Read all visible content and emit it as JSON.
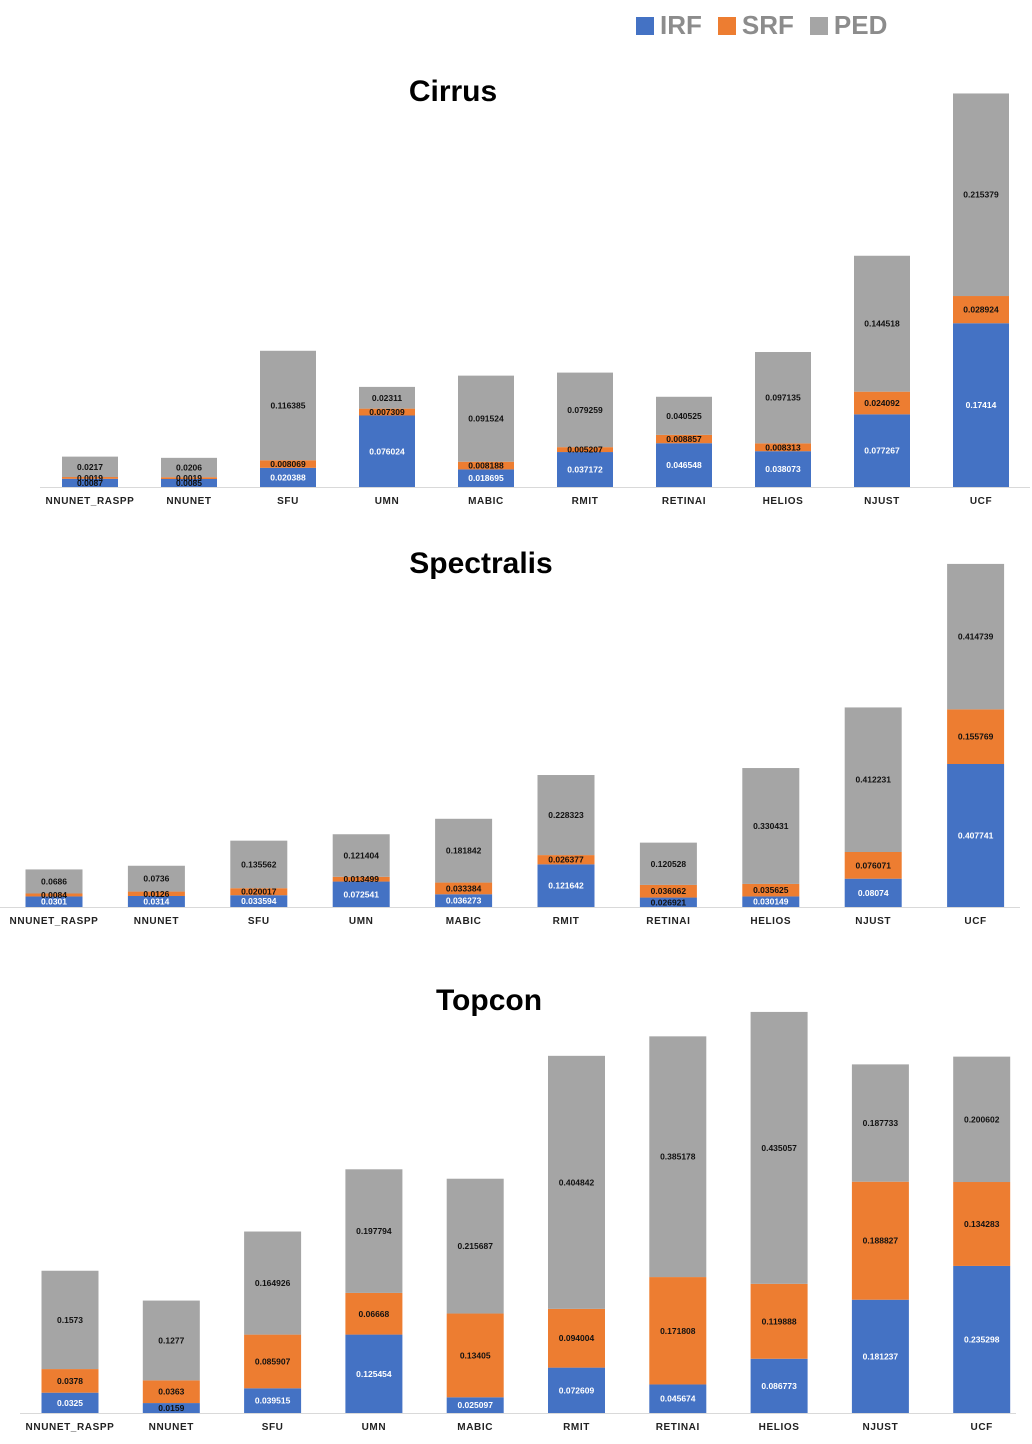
{
  "legend": [
    {
      "name": "IRF",
      "color": "#4472C4"
    },
    {
      "name": "SRF",
      "color": "#ED7D31"
    },
    {
      "name": "PED",
      "color": "#A5A5A5"
    }
  ],
  "chart_data": [
    {
      "type": "bar",
      "stacked": true,
      "title": "Cirrus",
      "categories": [
        "NNUNET_RASPP",
        "NNUNET",
        "SFU",
        "UMN",
        "MABIC",
        "RMIT",
        "RETINAI",
        "HELIOS",
        "NJUST",
        "UCF"
      ],
      "series": [
        {
          "name": "IRF",
          "values": [
            0.0087,
            0.0085,
            0.020388,
            0.076024,
            0.018695,
            0.037172,
            0.046548,
            0.038073,
            0.077267,
            0.17414
          ]
        },
        {
          "name": "SRF",
          "values": [
            0.0019,
            0.0019,
            0.008069,
            0.007309,
            0.008188,
            0.005207,
            0.008857,
            0.008313,
            0.024092,
            0.028924
          ]
        },
        {
          "name": "PED",
          "values": [
            0.0217,
            0.0206,
            0.116385,
            0.02311,
            0.091524,
            0.079259,
            0.040525,
            0.097135,
            0.144518,
            0.215379
          ]
        }
      ],
      "ylim": [
        0,
        0.42
      ],
      "xlabel": "",
      "ylabel": ""
    },
    {
      "type": "bar",
      "stacked": true,
      "title": "Spectralis",
      "categories": [
        "NNUNET_RASPP",
        "NNUNET",
        "SFU",
        "UMN",
        "MABIC",
        "RMIT",
        "RETINAI",
        "HELIOS",
        "NJUST",
        "UCF"
      ],
      "series": [
        {
          "name": "IRF",
          "values": [
            0.0301,
            0.0314,
            0.033594,
            0.072541,
            0.036273,
            0.121642,
            0.026921,
            0.030149,
            0.08074,
            0.407741
          ]
        },
        {
          "name": "SRF",
          "values": [
            0.0084,
            0.0126,
            0.020017,
            0.013499,
            0.033384,
            0.026377,
            0.036062,
            0.035625,
            0.076071,
            0.155769
          ]
        },
        {
          "name": "PED",
          "values": [
            0.0686,
            0.0736,
            0.135562,
            0.121404,
            0.181842,
            0.228323,
            0.120528,
            0.330431,
            0.412231,
            0.414739
          ]
        }
      ],
      "ylim": [
        0,
        0.978
      ],
      "xlabel": "",
      "ylabel": ""
    },
    {
      "type": "bar",
      "stacked": true,
      "title": "Topcon",
      "categories": [
        "NNUNET_RASPP",
        "NNUNET",
        "SFU",
        "UMN",
        "MABIC",
        "RMIT",
        "RETINAI",
        "HELIOS",
        "NJUST",
        "UCF"
      ],
      "series": [
        {
          "name": "IRF",
          "values": [
            0.0325,
            0.0159,
            0.039515,
            0.125454,
            0.025097,
            0.072609,
            0.045674,
            0.086773,
            0.181237,
            0.235298
          ]
        },
        {
          "name": "SRF",
          "values": [
            0.0378,
            0.0363,
            0.085907,
            0.06668,
            0.13405,
            0.094004,
            0.171808,
            0.119888,
            0.188827,
            0.134283
          ]
        },
        {
          "name": "PED",
          "values": [
            0.1573,
            0.1277,
            0.164926,
            0.197794,
            0.215687,
            0.404842,
            0.385178,
            0.435057,
            0.187733,
            0.200602
          ]
        }
      ],
      "ylim": [
        0,
        0.64
      ],
      "xlabel": "",
      "ylabel": ""
    }
  ]
}
